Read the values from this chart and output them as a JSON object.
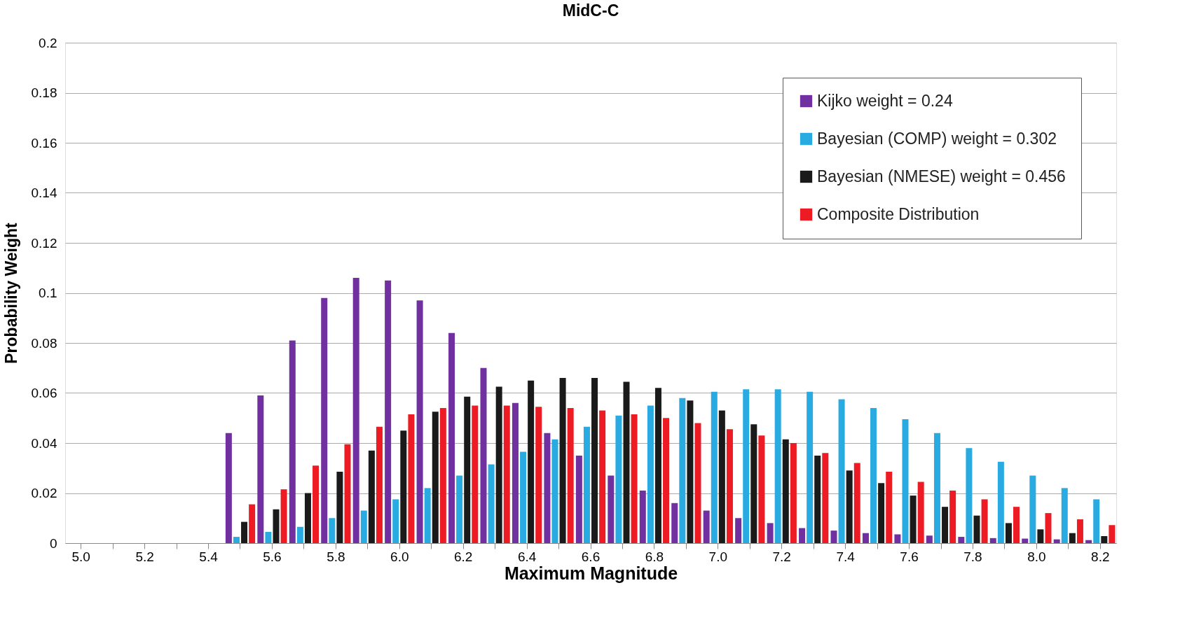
{
  "chart_data": {
    "type": "bar",
    "title": "MidC-C",
    "xlabel": "Maximum Magnitude",
    "ylabel": "Probability Weight",
    "categories": [
      "5.0",
      null,
      "5.2",
      null,
      "5.4",
      null,
      "5.6",
      null,
      "5.8",
      null,
      "6.0",
      null,
      "6.2",
      null,
      "6.4",
      null,
      "6.6",
      null,
      "6.8",
      null,
      "7.0",
      null,
      "7.2",
      null,
      "7.4",
      null,
      "7.6",
      null,
      "7.8",
      null,
      "8.0",
      null,
      "8.2"
    ],
    "series": [
      {
        "name": "Kijko weight = 0.24",
        "color": "#7030a0",
        "values": [
          null,
          null,
          null,
          null,
          null,
          0.044,
          0.059,
          0.081,
          0.098,
          0.106,
          0.105,
          0.097,
          0.084,
          0.07,
          0.056,
          0.044,
          0.035,
          0.027,
          0.021,
          0.016,
          0.013,
          0.01,
          0.008,
          0.006,
          0.005,
          0.004,
          0.0035,
          0.003,
          0.0025,
          0.002,
          0.0018,
          0.0015,
          0.0012
        ]
      },
      {
        "name": "Bayesian (COMP) weight = 0.302",
        "color": "#29abe2",
        "values": [
          null,
          null,
          null,
          null,
          null,
          0.0025,
          0.0045,
          0.0065,
          0.01,
          0.013,
          0.0175,
          0.022,
          0.027,
          0.0315,
          0.0365,
          0.0415,
          0.0465,
          0.051,
          0.055,
          0.058,
          0.0605,
          0.0615,
          0.0615,
          0.0605,
          0.0575,
          0.054,
          0.0495,
          0.044,
          0.038,
          0.0325,
          0.027,
          0.022,
          0.0175
        ]
      },
      {
        "name": "Bayesian (NMESE) weight = 0.456",
        "color": "#1a1a1a",
        "values": [
          null,
          null,
          null,
          null,
          null,
          0.0085,
          0.0135,
          0.02,
          0.0285,
          0.037,
          0.045,
          0.0525,
          0.0585,
          0.0625,
          0.065,
          0.066,
          0.066,
          0.0645,
          0.062,
          0.057,
          0.053,
          0.0475,
          0.0415,
          0.035,
          0.029,
          0.024,
          0.019,
          0.0145,
          0.011,
          0.008,
          0.0055,
          0.004,
          0.0028
        ]
      },
      {
        "name": "Composite Distribution",
        "color": "#ed1c24",
        "values": [
          null,
          null,
          null,
          null,
          null,
          0.0155,
          0.0215,
          0.031,
          0.0395,
          0.0465,
          0.0515,
          0.054,
          0.055,
          0.055,
          0.0545,
          0.054,
          0.053,
          0.0515,
          0.05,
          0.048,
          0.0455,
          0.043,
          0.04,
          0.036,
          0.032,
          0.0285,
          0.0245,
          0.021,
          0.0175,
          0.0145,
          0.012,
          0.0095,
          0.0072
        ]
      }
    ],
    "ylim": [
      0,
      0.2
    ],
    "yticks": [
      0,
      0.02,
      0.04,
      0.06,
      0.08,
      0.1,
      0.12,
      0.14,
      0.16,
      0.18,
      0.2
    ],
    "grid": "y",
    "legend": "top right"
  }
}
